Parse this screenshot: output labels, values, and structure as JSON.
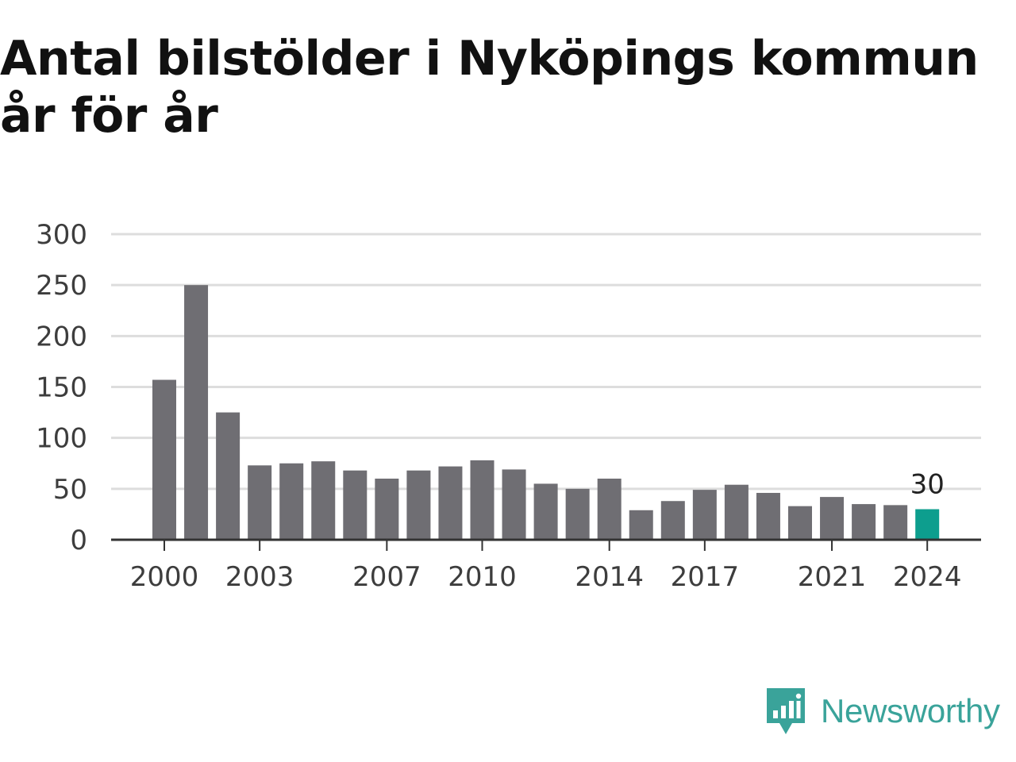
{
  "title": "Antal bilstölder i Nyköpings kommun år för år",
  "logo_text": "Newsworthy",
  "colors": {
    "bar": "#6f6e73",
    "highlight": "#0d9e8e",
    "grid": "#dddddd",
    "axis": "#333333",
    "logo": "#3aa39a"
  },
  "chart_data": {
    "type": "bar",
    "title": "Antal bilstölder i Nyköpings kommun år för år",
    "categories": [
      "2000",
      "2001",
      "2002",
      "2003",
      "2004",
      "2005",
      "2006",
      "2007",
      "2008",
      "2009",
      "2010",
      "2011",
      "2012",
      "2013",
      "2014",
      "2015",
      "2016",
      "2017",
      "2018",
      "2019",
      "2020",
      "2021",
      "2022",
      "2023",
      "2024"
    ],
    "values": [
      157,
      250,
      125,
      73,
      75,
      77,
      68,
      60,
      68,
      72,
      78,
      69,
      55,
      50,
      60,
      29,
      38,
      49,
      54,
      46,
      33,
      42,
      35,
      34,
      30
    ],
    "ylim": [
      0,
      300
    ],
    "yticks": [
      0,
      50,
      100,
      150,
      200,
      250,
      300
    ],
    "xticks": [
      "2000",
      "2003",
      "2007",
      "2010",
      "2014",
      "2017",
      "2021",
      "2024"
    ],
    "highlight_category": "2024",
    "data_labels": [
      {
        "category": "2024",
        "text": "30"
      }
    ],
    "grid": true,
    "xlabel": "",
    "ylabel": ""
  }
}
